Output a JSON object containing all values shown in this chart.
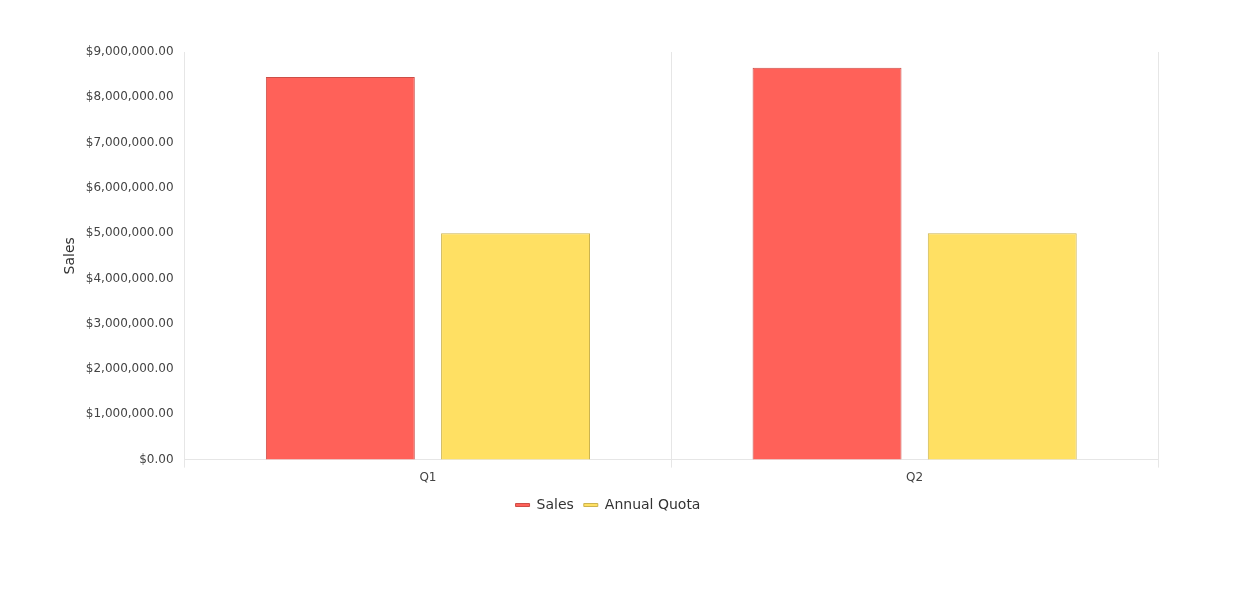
{
  "chart_data": {
    "type": "bar",
    "ylabel": "Sales",
    "categories": [
      "Q1",
      "Q2"
    ],
    "series": [
      {
        "name": "Sales",
        "color": "#ff6159",
        "values": [
          8450000,
          8650000
        ]
      },
      {
        "name": "Annual Quota",
        "color": "#ffe063",
        "values": [
          5000000,
          5000000
        ]
      }
    ],
    "ylim": [
      0,
      9000000
    ],
    "yticks": [
      {
        "value": 0,
        "label": "$0.00"
      },
      {
        "value": 1000000,
        "label": "$1,000,000.00"
      },
      {
        "value": 2000000,
        "label": "$2,000,000.00"
      },
      {
        "value": 3000000,
        "label": "$3,000,000.00"
      },
      {
        "value": 4000000,
        "label": "$4,000,000.00"
      },
      {
        "value": 5000000,
        "label": "$5,000,000.00"
      },
      {
        "value": 6000000,
        "label": "$6,000,000.00"
      },
      {
        "value": 7000000,
        "label": "$7,000,000.00"
      },
      {
        "value": 8000000,
        "label": "$8,000,000.00"
      },
      {
        "value": 9000000,
        "label": "$9,000,000.00"
      }
    ],
    "grid": "x",
    "legend": "bottom"
  }
}
